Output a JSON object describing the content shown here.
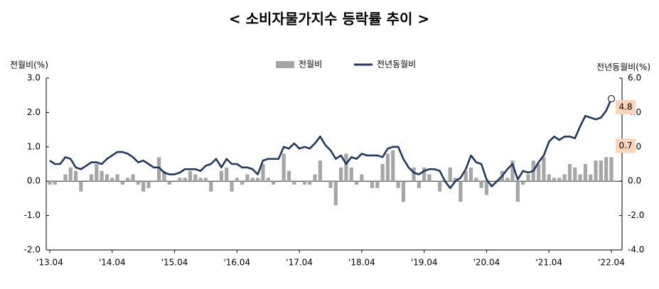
{
  "chart_data": {
    "type": "bar_line",
    "title": "< 소비자물가지수 등락률 추이 >",
    "y_label": "전월비(%)",
    "y2_label": "전년동월비(%)",
    "categories": [
      "'13.04",
      null,
      null,
      null,
      null,
      null,
      null,
      null,
      null,
      null,
      null,
      null,
      "'14.04",
      null,
      null,
      null,
      null,
      null,
      null,
      null,
      null,
      null,
      null,
      null,
      "'15.04",
      null,
      null,
      null,
      null,
      null,
      null,
      null,
      null,
      null,
      null,
      null,
      "'16.04",
      null,
      null,
      null,
      null,
      null,
      null,
      null,
      null,
      null,
      null,
      null,
      "'17.04",
      null,
      null,
      null,
      null,
      null,
      null,
      null,
      null,
      null,
      null,
      null,
      "'18.04",
      null,
      null,
      null,
      null,
      null,
      null,
      null,
      null,
      null,
      null,
      null,
      "'19.04",
      null,
      null,
      null,
      null,
      null,
      null,
      null,
      null,
      null,
      null,
      null,
      "'20.04",
      null,
      null,
      null,
      null,
      null,
      null,
      null,
      null,
      null,
      null,
      null,
      "'21.04",
      null,
      null,
      null,
      null,
      null,
      null,
      null,
      null,
      null,
      null,
      null,
      "'22.04"
    ],
    "series": [
      {
        "name": "전월비",
        "type": "bar",
        "color": "#a6a6a6",
        "values": [
          -0.1,
          -0.1,
          0.0,
          0.2,
          0.4,
          0.3,
          -0.3,
          0.0,
          0.2,
          0.5,
          0.3,
          0.2,
          0.1,
          0.2,
          -0.1,
          0.1,
          0.2,
          -0.1,
          -0.3,
          -0.2,
          0.0,
          0.7,
          0.3,
          -0.1,
          0.0,
          0.1,
          0.1,
          0.3,
          0.2,
          0.1,
          0.1,
          -0.3,
          0.0,
          0.3,
          0.4,
          -0.3,
          0.1,
          -0.1,
          0.2,
          0.1,
          0.1,
          0.5,
          0.1,
          -0.1,
          0.0,
          0.8,
          0.3,
          -0.1,
          0.0,
          -0.1,
          -0.1,
          0.2,
          0.6,
          0.0,
          -0.2,
          -0.7,
          0.4,
          0.8,
          0.4,
          -0.1,
          0.2,
          0.0,
          -0.2,
          -0.2,
          0.5,
          0.8,
          0.9,
          -0.2,
          -0.6,
          0.0,
          0.4,
          -0.2,
          0.4,
          0.2,
          0.0,
          -0.3,
          0.0,
          0.4,
          0.1,
          -0.6,
          0.3,
          0.4,
          0.1,
          -0.2,
          -0.4,
          0.0,
          0.0,
          0.3,
          0.1,
          0.6,
          -0.6,
          -0.1,
          0.2,
          0.6,
          0.5,
          0.7,
          0.2,
          0.1,
          0.1,
          0.2,
          0.5,
          0.4,
          0.2,
          0.5,
          0.2,
          0.6,
          0.6,
          0.7,
          0.7
        ]
      },
      {
        "name": "전년동월비",
        "type": "line",
        "axis": "y2",
        "color": "#1f3864",
        "values": [
          1.2,
          1.0,
          1.0,
          1.4,
          1.3,
          0.8,
          0.7,
          0.9,
          1.1,
          1.1,
          1.0,
          1.3,
          1.5,
          1.7,
          1.7,
          1.6,
          1.4,
          1.1,
          1.2,
          1.0,
          0.8,
          0.8,
          0.5,
          0.4,
          0.4,
          0.5,
          0.7,
          0.7,
          0.7,
          0.6,
          0.9,
          1.0,
          1.3,
          0.8,
          1.3,
          1.0,
          1.0,
          0.8,
          0.8,
          0.7,
          0.4,
          1.2,
          1.3,
          1.3,
          1.3,
          2.0,
          1.9,
          2.2,
          1.9,
          2.0,
          1.9,
          2.2,
          2.6,
          2.1,
          1.8,
          1.3,
          1.5,
          1.0,
          1.4,
          1.3,
          1.6,
          1.5,
          1.5,
          1.5,
          1.4,
          1.9,
          2.0,
          2.0,
          1.3,
          0.8,
          0.5,
          0.4,
          0.6,
          0.7,
          0.7,
          0.6,
          0.0,
          -0.4,
          0.0,
          0.2,
          0.7,
          1.5,
          1.1,
          1.0,
          0.1,
          -0.3,
          0.0,
          0.3,
          0.7,
          1.0,
          0.1,
          0.6,
          0.5,
          0.6,
          1.1,
          1.5,
          2.3,
          2.6,
          2.4,
          2.6,
          2.6,
          2.5,
          3.2,
          3.8,
          3.7,
          3.6,
          3.7,
          4.1,
          4.8
        ]
      }
    ],
    "ylim": [
      -2,
      3
    ],
    "yticks": [
      {
        "value": -2,
        "label": "-2.0"
      },
      {
        "value": -1,
        "label": "-1.0"
      },
      {
        "value": 0,
        "label": "0.0"
      },
      {
        "value": 1,
        "label": "1.0"
      },
      {
        "value": 2,
        "label": "2.0"
      },
      {
        "value": 3,
        "label": "3.0"
      }
    ],
    "y2lim": [
      -4,
      6
    ],
    "y2ticks": [
      {
        "value": -4,
        "label": "-4.0"
      },
      {
        "value": -2,
        "label": "-2.0"
      },
      {
        "value": 0,
        "label": "0.0"
      },
      {
        "value": 2,
        "label": "2.0"
      },
      {
        "value": 4,
        "label": "4.0"
      },
      {
        "value": 6,
        "label": "6.0"
      }
    ],
    "legend": "top"
  }
}
